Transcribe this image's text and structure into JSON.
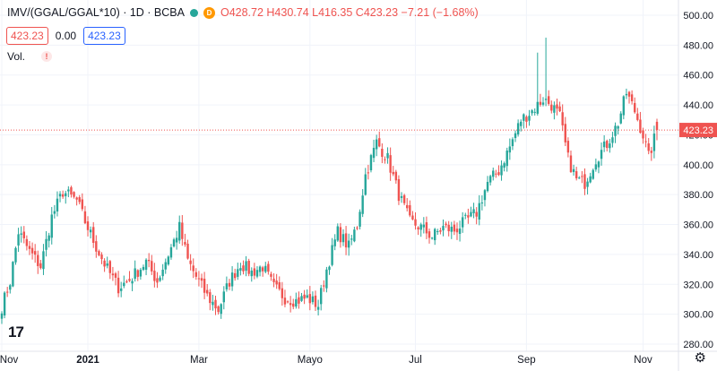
{
  "legend": {
    "symbol": "IMV/(GGAL/GGAL*10) · 1D · BCBA",
    "ohlc": "O428.72 H430.74 L416.35 C423.23 −7.21 (−1.68%)",
    "d_badge": "D",
    "box1": "423.23",
    "zero": "0.00",
    "box2": "423.23",
    "vol_label": "Vol.",
    "vol_warn": "!"
  },
  "logo_text": "17",
  "settings_icon": "gear-icon",
  "colors": {
    "up": "#26a69a",
    "down": "#ef5350",
    "last_price": "#ef5350",
    "grid": "#f0f3fa",
    "axis_text": "#131722"
  },
  "chart_data": {
    "type": "candlestick",
    "title": "IMV/(GGAL/GGAL*10) · 1D · BCBA",
    "ylim": [
      280,
      500
    ],
    "y_ticks": [
      "500.00",
      "480.00",
      "460.00",
      "440.00",
      "420.00",
      "400.00",
      "380.00",
      "360.00",
      "340.00",
      "320.00",
      "300.00",
      "280.00"
    ],
    "y_tick_values": [
      500,
      480,
      460,
      440,
      420,
      400,
      380,
      360,
      340,
      320,
      300,
      280
    ],
    "x_ticks": [
      {
        "label": "Nov",
        "index": 0
      },
      {
        "label": "2021",
        "index": 31,
        "bold": true
      },
      {
        "label": "Mar",
        "index": 71
      },
      {
        "label": "Mayo",
        "index": 111
      },
      {
        "label": "Jul",
        "index": 149
      },
      {
        "label": "Sep",
        "index": 189
      },
      {
        "label": "Nov",
        "index": 231
      }
    ],
    "last_price": 423.23,
    "last_price_label": "423.23",
    "anchors": [
      [
        0,
        305
      ],
      [
        3,
        322
      ],
      [
        6,
        355
      ],
      [
        10,
        342
      ],
      [
        14,
        332
      ],
      [
        18,
        365
      ],
      [
        22,
        382
      ],
      [
        27,
        376
      ],
      [
        30,
        362
      ],
      [
        34,
        345
      ],
      [
        38,
        330
      ],
      [
        42,
        318
      ],
      [
        46,
        323
      ],
      [
        52,
        335
      ],
      [
        56,
        322
      ],
      [
        60,
        340
      ],
      [
        64,
        358
      ],
      [
        67,
        336
      ],
      [
        70,
        325
      ],
      [
        74,
        312
      ],
      [
        78,
        303
      ],
      [
        82,
        322
      ],
      [
        86,
        334
      ],
      [
        90,
        328
      ],
      [
        94,
        332
      ],
      [
        98,
        318
      ],
      [
        102,
        311
      ],
      [
        106,
        309
      ],
      [
        110,
        311
      ],
      [
        114,
        306
      ],
      [
        117,
        330
      ],
      [
        121,
        355
      ],
      [
        125,
        345
      ],
      [
        128,
        360
      ],
      [
        131,
        393
      ],
      [
        135,
        415
      ],
      [
        139,
        404
      ],
      [
        143,
        380
      ],
      [
        147,
        362
      ],
      [
        151,
        358
      ],
      [
        155,
        352
      ],
      [
        159,
        358
      ],
      [
        163,
        356
      ],
      [
        167,
        362
      ],
      [
        171,
        368
      ],
      [
        175,
        388
      ],
      [
        179,
        396
      ],
      [
        183,
        412
      ],
      [
        187,
        430
      ],
      [
        191,
        436
      ],
      [
        195,
        444
      ],
      [
        198,
        440
      ],
      [
        201,
        432
      ],
      [
        204,
        404
      ],
      [
        207,
        390
      ],
      [
        210,
        388
      ],
      [
        214,
        404
      ],
      [
        218,
        414
      ],
      [
        222,
        428
      ],
      [
        225,
        448
      ],
      [
        228,
        436
      ],
      [
        231,
        420
      ],
      [
        233,
        405
      ],
      [
        236,
        423
      ]
    ],
    "spikes": [
      [
        193,
        475
      ],
      [
        196,
        485
      ]
    ]
  }
}
